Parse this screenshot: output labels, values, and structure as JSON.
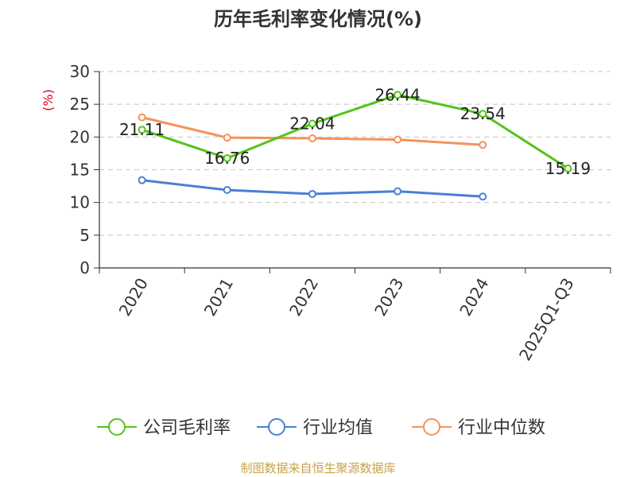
{
  "chart_data": {
    "type": "line",
    "title": "历年毛利率变化情况(%)",
    "ylabel": "(%)",
    "ylim": [
      0,
      30
    ],
    "yticks": [
      0,
      5,
      10,
      15,
      20,
      25,
      30
    ],
    "grid": true,
    "legend_position": "bottom",
    "categories": [
      "2020",
      "2021",
      "2022",
      "2023",
      "2024",
      "2025Q1-Q3"
    ],
    "series": [
      {
        "name": "公司毛利率",
        "color": "#52c41a",
        "values": [
          21.11,
          16.76,
          22.04,
          26.44,
          23.54,
          15.19
        ],
        "labels": [
          "21.11",
          "16.76",
          "22.04",
          "26.44",
          "23.54",
          "15.19"
        ]
      },
      {
        "name": "行业均值",
        "color": "#4a7fd6",
        "values": [
          13.4,
          11.9,
          11.3,
          11.7,
          10.9,
          null
        ]
      },
      {
        "name": "行业中位数",
        "color": "#f5925a",
        "values": [
          23.0,
          19.9,
          19.8,
          19.6,
          18.8,
          null
        ]
      }
    ],
    "source": "制图数据来自恒生聚源数据库"
  }
}
